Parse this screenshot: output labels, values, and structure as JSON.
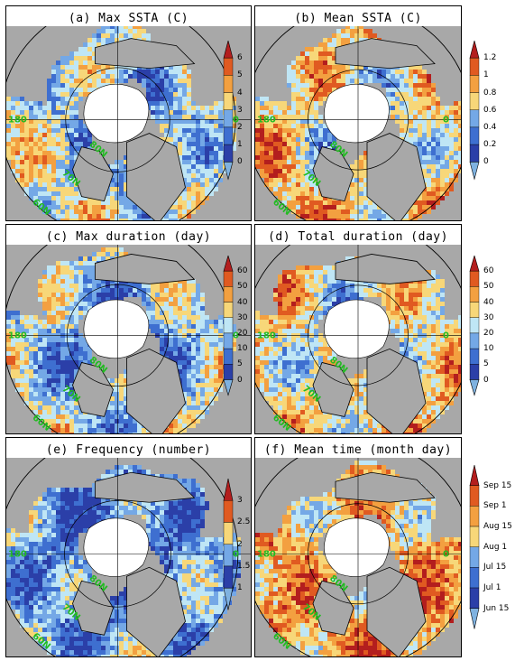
{
  "panels": [
    {
      "id": "a",
      "title": "(a) Max SSTA (C)",
      "colorbar": [
        "0",
        "1",
        "2",
        "3",
        "4",
        "5",
        "6"
      ],
      "palette": [
        "#7fb2e0",
        "#2b3fa8",
        "#3e6fd0",
        "#74a8e6",
        "#bfe6f5",
        "#f7d779",
        "#f3a040",
        "#e05a21",
        "#b31e1e"
      ],
      "field_bias": 0.45,
      "labels": {
        "lon_w": "180",
        "lon_e": "0",
        "lat1": "80N",
        "lat2": "70N",
        "lat3": "60N"
      }
    },
    {
      "id": "b",
      "title": "(b) Mean SSTA (C)",
      "colorbar": [
        "0",
        "0.2",
        "0.4",
        "0.6",
        "0.8",
        "1",
        "1.2"
      ],
      "palette": [
        "#7fb2e0",
        "#2b3fa8",
        "#3e6fd0",
        "#74a8e6",
        "#bfe6f5",
        "#f7d779",
        "#f3a040",
        "#e05a21",
        "#b31e1e"
      ],
      "field_bias": 0.58,
      "labels": {
        "lon_w": "180",
        "lon_e": "0",
        "lat1": "80N",
        "lat2": "70N",
        "lat3": "60N"
      }
    },
    {
      "id": "c",
      "title": "(c) Max duration (day)",
      "colorbar": [
        "0",
        "5",
        "10",
        "20",
        "30",
        "40",
        "50",
        "60"
      ],
      "palette": [
        "#7fb2e0",
        "#2b3fa8",
        "#3e6fd0",
        "#74a8e6",
        "#bfe6f5",
        "#f7d779",
        "#f3a040",
        "#e05a21",
        "#b31e1e"
      ],
      "field_bias": 0.4,
      "labels": {
        "lon_w": "180",
        "lon_e": "0",
        "lat1": "80N",
        "lat2": "70N",
        "lat3": "60N"
      }
    },
    {
      "id": "d",
      "title": "(d) Total duration (day)",
      "colorbar": [
        "0",
        "5",
        "10",
        "20",
        "30",
        "40",
        "50",
        "60"
      ],
      "palette": [
        "#7fb2e0",
        "#2b3fa8",
        "#3e6fd0",
        "#74a8e6",
        "#bfe6f5",
        "#f7d779",
        "#f3a040",
        "#e05a21",
        "#b31e1e"
      ],
      "field_bias": 0.55,
      "labels": {
        "lon_w": "180",
        "lon_e": "0",
        "lat1": "80N",
        "lat2": "70N",
        "lat3": "60N"
      }
    },
    {
      "id": "e",
      "title": "(e) Frequency (number)",
      "colorbar": [
        "1",
        "1.5",
        "2",
        "2.5",
        "3"
      ],
      "palette": [
        "#7fb2e0",
        "#2b3fa8",
        "#3e6fd0",
        "#74a8e6",
        "#bfe6f5",
        "#f7d779",
        "#f3a040",
        "#e05a21",
        "#b31e1e"
      ],
      "field_bias": 0.3,
      "labels": {
        "lon_w": "180",
        "lon_e": "0",
        "lat1": "80N",
        "lat2": "70N",
        "lat3": "60N"
      }
    },
    {
      "id": "f",
      "title": "(f) Mean time (month day)",
      "colorbar": [
        "Jun 15",
        "Jul 1",
        "Jul 15",
        "Aug 1",
        "Aug 15",
        "Sep 1",
        "Sep 15"
      ],
      "palette": [
        "#7fb2e0",
        "#2b3fa8",
        "#3e6fd0",
        "#74a8e6",
        "#bfe6f5",
        "#f7d779",
        "#f3a040",
        "#e05a21",
        "#b31e1e"
      ],
      "field_bias": 0.68,
      "labels": {
        "lon_w": "180",
        "lon_e": "0",
        "lat1": "80N",
        "lat2": "70N",
        "lat3": "60N"
      }
    }
  ],
  "colors": {
    "land": "#a8a8a8",
    "ice": "#ffffff",
    "grid": "#000000",
    "grid_label": "#22bb22"
  }
}
